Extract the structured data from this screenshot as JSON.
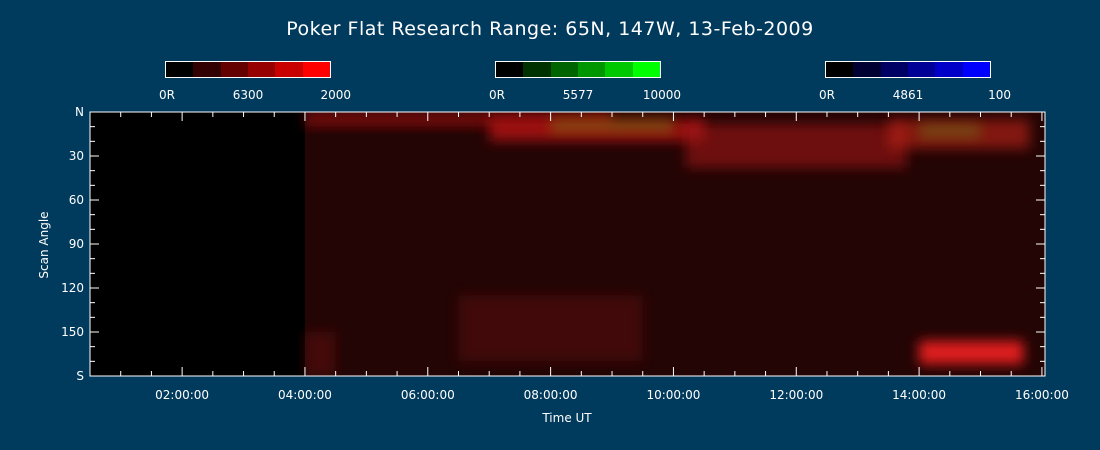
{
  "title": "Poker Flat Research Range: 65N, 147W, 13-Feb-2009",
  "colorbars": [
    {
      "min_label": "0R",
      "mid_label": "6300",
      "max_label": "2000",
      "colors": [
        "#000000",
        "#320000",
        "#640000",
        "#960000",
        "#c80000",
        "#ff0000"
      ]
    },
    {
      "min_label": "0R",
      "mid_label": "5577",
      "max_label": "10000",
      "colors": [
        "#000000",
        "#003200",
        "#006400",
        "#009600",
        "#00c800",
        "#00ff00"
      ]
    },
    {
      "min_label": "0R",
      "mid_label": "4861",
      "max_label": "100",
      "colors": [
        "#000000",
        "#000032",
        "#000064",
        "#000096",
        "#0000c8",
        "#0000ff"
      ]
    }
  ],
  "chart_data": {
    "type": "heatmap",
    "xlabel": "Time UT",
    "ylabel": "Scan Angle",
    "x_range_hours": [
      0.5,
      16.05
    ],
    "y_range_deg": [
      0,
      180
    ],
    "x_ticks": [
      {
        "hours": 2,
        "label": "02:00:00"
      },
      {
        "hours": 4,
        "label": "04:00:00"
      },
      {
        "hours": 6,
        "label": "06:00:00"
      },
      {
        "hours": 8,
        "label": "08:00:00"
      },
      {
        "hours": 10,
        "label": "10:00:00"
      },
      {
        "hours": 12,
        "label": "12:00:00"
      },
      {
        "hours": 14,
        "label": "14:00:00"
      },
      {
        "hours": 16,
        "label": "16:00:00"
      }
    ],
    "y_ticks": [
      {
        "deg": 0,
        "label": "N"
      },
      {
        "deg": 30,
        "label": "30"
      },
      {
        "deg": 60,
        "label": "60"
      },
      {
        "deg": 90,
        "label": "90"
      },
      {
        "deg": 120,
        "label": "120"
      },
      {
        "deg": 150,
        "label": "150"
      },
      {
        "deg": 180,
        "label": "S"
      }
    ],
    "data_start_hours": 4.0,
    "emission_regions": [
      {
        "t0": 4.0,
        "t1": 16.05,
        "a0": 0,
        "a1": 180,
        "color": "#2a0606",
        "opacity": 0.85
      },
      {
        "t0": 4.0,
        "t1": 9.0,
        "a0": 0,
        "a1": 10,
        "color": "#b41010",
        "opacity": 0.55
      },
      {
        "t0": 7.0,
        "t1": 10.5,
        "a0": 5,
        "a1": 20,
        "color": "#d01818",
        "opacity": 0.65
      },
      {
        "t0": 8.0,
        "t1": 10.0,
        "a0": 5,
        "a1": 14,
        "color": "#6a8a10",
        "opacity": 0.45
      },
      {
        "t0": 10.2,
        "t1": 13.8,
        "a0": 8,
        "a1": 38,
        "color": "#a01818",
        "opacity": 0.6
      },
      {
        "t0": 13.5,
        "t1": 15.8,
        "a0": 5,
        "a1": 25,
        "color": "#b42214",
        "opacity": 0.65
      },
      {
        "t0": 14.0,
        "t1": 15.0,
        "a0": 8,
        "a1": 18,
        "color": "#6a7a18",
        "opacity": 0.45
      },
      {
        "t0": 6.5,
        "t1": 9.5,
        "a0": 125,
        "a1": 170,
        "color": "#5a0a0a",
        "opacity": 0.55
      },
      {
        "t0": 14.0,
        "t1": 15.7,
        "a0": 156,
        "a1": 172,
        "color": "#ff2020",
        "opacity": 0.85
      },
      {
        "t0": 4.0,
        "t1": 4.5,
        "a0": 150,
        "a1": 180,
        "color": "#5a0a0a",
        "opacity": 0.6
      }
    ]
  }
}
